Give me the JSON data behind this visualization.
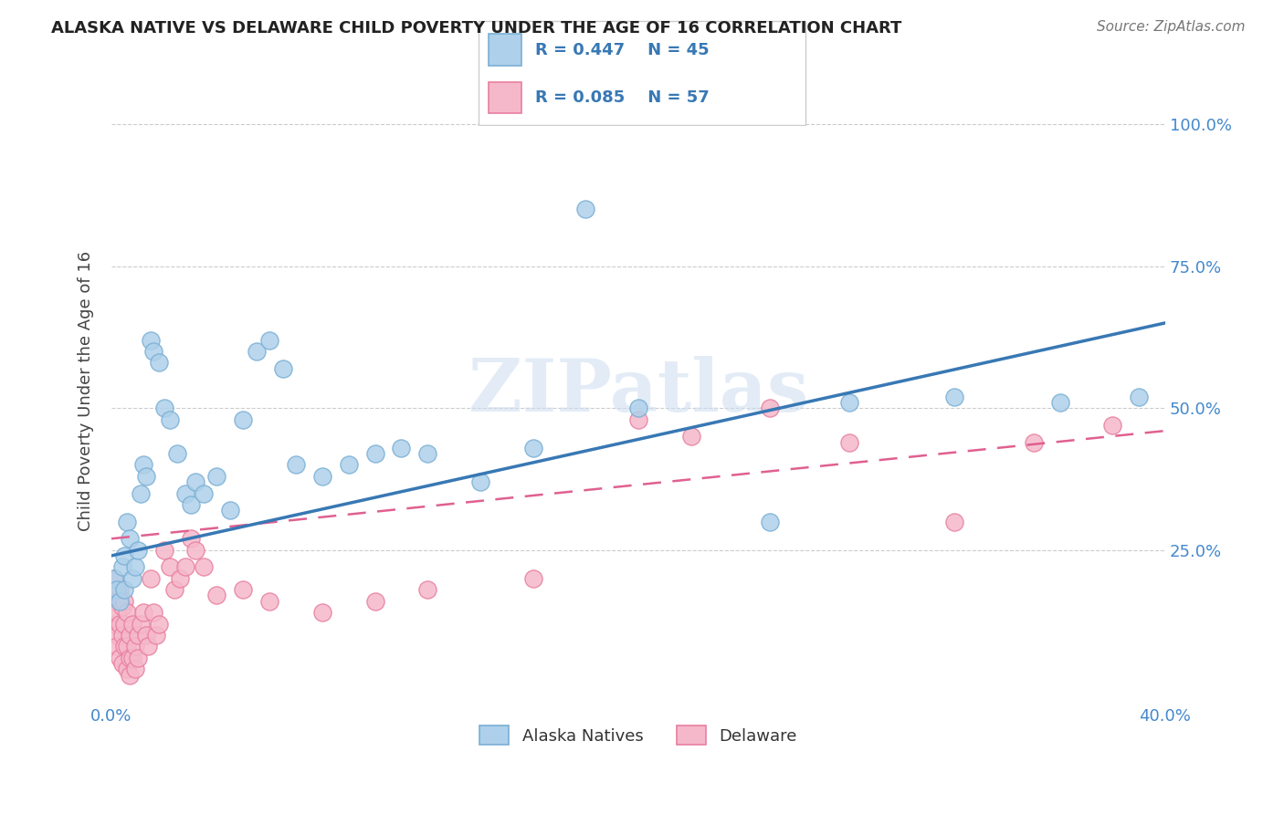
{
  "title": "ALASKA NATIVE VS DELAWARE CHILD POVERTY UNDER THE AGE OF 16 CORRELATION CHART",
  "source": "Source: ZipAtlas.com",
  "ylabel": "Child Poverty Under the Age of 16",
  "xlim": [
    0.0,
    0.4
  ],
  "ylim": [
    -0.02,
    1.08
  ],
  "alaska_color_edge": "#7aafd4",
  "alaska_color_fill": "#aed0ea",
  "delaware_color_edge": "#e87fa0",
  "delaware_color_fill": "#f5b8ca",
  "trendline_alaska_color": "#3878b4",
  "trendline_delaware_color": "#e06090",
  "watermark": "ZIPatlas",
  "alaska_x": [
    0.001,
    0.002,
    0.003,
    0.004,
    0.005,
    0.005,
    0.006,
    0.007,
    0.008,
    0.009,
    0.01,
    0.011,
    0.012,
    0.013,
    0.015,
    0.016,
    0.018,
    0.02,
    0.022,
    0.025,
    0.028,
    0.03,
    0.032,
    0.035,
    0.04,
    0.045,
    0.05,
    0.055,
    0.06,
    0.065,
    0.07,
    0.08,
    0.09,
    0.1,
    0.11,
    0.12,
    0.14,
    0.16,
    0.18,
    0.2,
    0.25,
    0.28,
    0.32,
    0.36,
    0.39
  ],
  "alaska_y": [
    0.2,
    0.18,
    0.16,
    0.22,
    0.18,
    0.24,
    0.3,
    0.27,
    0.2,
    0.22,
    0.25,
    0.35,
    0.4,
    0.38,
    0.62,
    0.6,
    0.58,
    0.5,
    0.48,
    0.42,
    0.35,
    0.33,
    0.37,
    0.35,
    0.38,
    0.32,
    0.48,
    0.6,
    0.62,
    0.57,
    0.4,
    0.38,
    0.4,
    0.42,
    0.43,
    0.42,
    0.37,
    0.43,
    0.85,
    0.5,
    0.3,
    0.51,
    0.52,
    0.51,
    0.52
  ],
  "delaware_x": [
    0.001,
    0.001,
    0.001,
    0.002,
    0.002,
    0.002,
    0.003,
    0.003,
    0.003,
    0.004,
    0.004,
    0.004,
    0.005,
    0.005,
    0.005,
    0.006,
    0.006,
    0.006,
    0.007,
    0.007,
    0.007,
    0.008,
    0.008,
    0.009,
    0.009,
    0.01,
    0.01,
    0.011,
    0.012,
    0.013,
    0.014,
    0.015,
    0.016,
    0.017,
    0.018,
    0.02,
    0.022,
    0.024,
    0.026,
    0.028,
    0.03,
    0.032,
    0.035,
    0.04,
    0.05,
    0.06,
    0.08,
    0.1,
    0.12,
    0.16,
    0.2,
    0.22,
    0.25,
    0.28,
    0.32,
    0.35,
    0.38
  ],
  "delaware_y": [
    0.2,
    0.16,
    0.12,
    0.14,
    0.1,
    0.08,
    0.18,
    0.12,
    0.06,
    0.15,
    0.1,
    0.05,
    0.16,
    0.12,
    0.08,
    0.14,
    0.08,
    0.04,
    0.1,
    0.06,
    0.03,
    0.12,
    0.06,
    0.08,
    0.04,
    0.1,
    0.06,
    0.12,
    0.14,
    0.1,
    0.08,
    0.2,
    0.14,
    0.1,
    0.12,
    0.25,
    0.22,
    0.18,
    0.2,
    0.22,
    0.27,
    0.25,
    0.22,
    0.17,
    0.18,
    0.16,
    0.14,
    0.16,
    0.18,
    0.2,
    0.48,
    0.45,
    0.5,
    0.44,
    0.3,
    0.44,
    0.47
  ],
  "ak_trend_x0": 0.0,
  "ak_trend_y0": 0.24,
  "ak_trend_x1": 0.4,
  "ak_trend_y1": 0.65,
  "del_trend_x0": 0.0,
  "del_trend_y0": 0.27,
  "del_trend_x1": 0.4,
  "del_trend_y1": 0.46
}
